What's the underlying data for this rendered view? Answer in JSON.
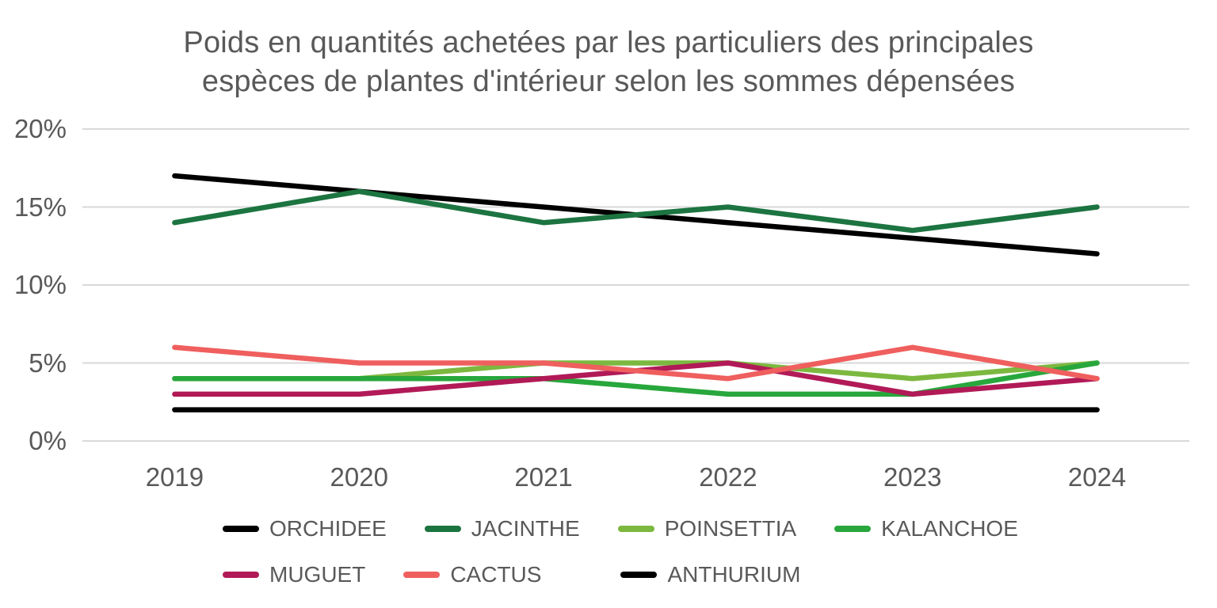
{
  "chart": {
    "title_line1": "Poids en quantités achetées par les particuliers des principales",
    "title_line2": "espèces de plantes d'intérieur selon les sommes dépensées"
  },
  "axes": {
    "yticks": [
      "20%",
      "15%",
      "10%",
      "5%",
      "0%"
    ],
    "years": [
      "2019",
      "2020",
      "2021",
      "2022",
      "2023",
      "2024"
    ]
  },
  "colors": {
    "text": "#595959",
    "gridline": "#D9D9D9",
    "background": "#FFFFFF"
  },
  "chart_data": {
    "type": "line",
    "title": "Poids en quantités achetées par les particuliers des principales espèces de plantes d'intérieur selon les sommes dépensées",
    "x": [
      "2019",
      "2020",
      "2021",
      "2022",
      "2023",
      "2024"
    ],
    "xlabel": "",
    "ylabel": "",
    "ylim": [
      0,
      20
    ],
    "ytick_step": 5,
    "ytick_format": "percent",
    "grid": "horizontal",
    "legend_position": "bottom",
    "series": [
      {
        "name": "ORCHIDEE",
        "color": "#000000",
        "values": [
          17,
          16,
          15,
          14,
          13,
          12
        ]
      },
      {
        "name": "JACINTHE",
        "color": "#1C7440",
        "values": [
          14,
          16,
          14,
          15,
          13.5,
          15
        ]
      },
      {
        "name": "POINSETTIA",
        "color": "#7CB83F",
        "values": [
          4,
          4,
          5,
          5,
          4,
          5
        ]
      },
      {
        "name": "KALANCHOE",
        "color": "#28A73C",
        "values": [
          4,
          4,
          4,
          3,
          3,
          5
        ]
      },
      {
        "name": "MUGUET",
        "color": "#B11A57",
        "values": [
          3,
          3,
          4,
          5,
          3,
          4
        ]
      },
      {
        "name": "CACTUS",
        "color": "#EF5F5E",
        "values": [
          6,
          5,
          5,
          4,
          6,
          4
        ]
      },
      {
        "name": "ANTHURIUM",
        "color": "#000000",
        "values": [
          2,
          2,
          2,
          2,
          2,
          2
        ]
      }
    ]
  }
}
